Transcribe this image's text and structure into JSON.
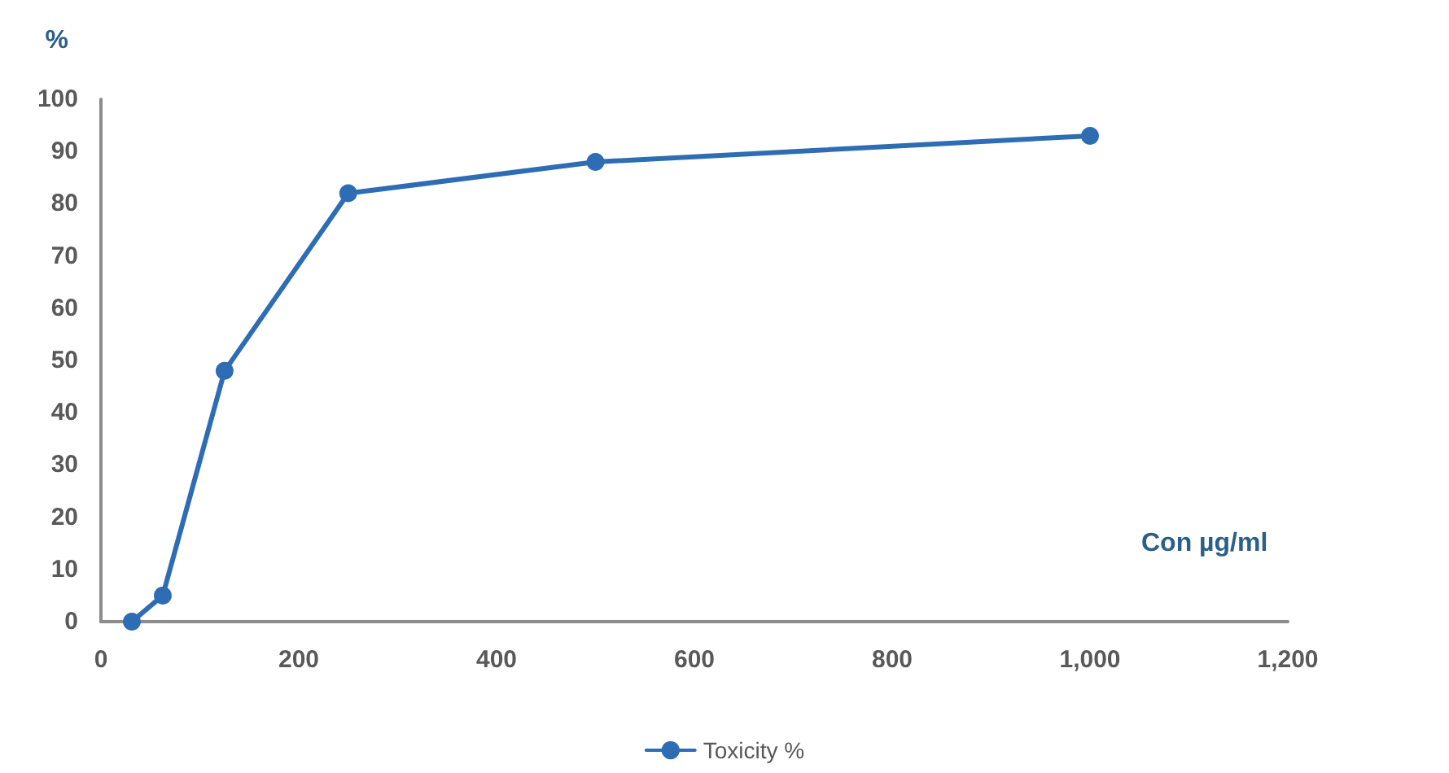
{
  "chart_data": {
    "type": "line",
    "xlabel": "Con µg/ml",
    "ylabel": "%",
    "x": [
      31.25,
      62.5,
      125,
      250,
      500,
      1000
    ],
    "series": [
      {
        "name": "Toxicity %",
        "color": "#2e6db4",
        "values": [
          0,
          5,
          48,
          82,
          88,
          93
        ]
      }
    ],
    "xlim": [
      0,
      1200
    ],
    "xticks": [
      0,
      {
        "value": 200,
        "label": "200"
      },
      {
        "value": 400,
        "label": "400"
      },
      {
        "value": 600,
        "label": "600"
      },
      {
        "value": 800,
        "label": "800"
      },
      {
        "value": 1000,
        "label": "1,000"
      },
      {
        "value": 1200,
        "label": "1,200"
      }
    ],
    "ylim": [
      0,
      100
    ],
    "yticks": [
      0,
      10,
      20,
      30,
      40,
      50,
      60,
      70,
      80,
      90,
      100
    ],
    "grid": false,
    "legend": "bottom",
    "marker": "circle",
    "line_style": "solid"
  }
}
